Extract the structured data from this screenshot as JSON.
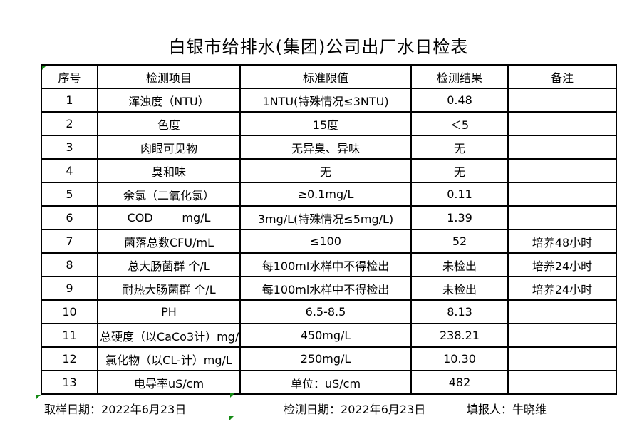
{
  "title": "白银市给排水(集团)公司出厂水日检表",
  "table": {
    "headers": [
      "序号",
      "检测项目",
      "标准限值",
      "检测结果",
      "备注"
    ],
    "rows": [
      {
        "no": "1",
        "item": "浑浊度（NTU）",
        "limit": "1NTU(特殊情况≤3NTU)",
        "result": "0.48",
        "remark": ""
      },
      {
        "no": "2",
        "item": "色度",
        "limit": "15度",
        "result": "＜5",
        "remark": ""
      },
      {
        "no": "3",
        "item": "肉眼可见物",
        "limit": "无异臭、异味",
        "result": "无",
        "remark": ""
      },
      {
        "no": "4",
        "item": "臭和味",
        "limit": "无",
        "result": "无",
        "remark": ""
      },
      {
        "no": "5",
        "item": "余氯（二氧化氯）",
        "limit": "≥0.1mg/L",
        "result": "0.11",
        "remark": ""
      },
      {
        "no": "6",
        "item": "COD        mg/L",
        "limit": "3mg/L(特殊情况≤5mg/L)",
        "result": "1.39",
        "remark": ""
      },
      {
        "no": "7",
        "item": "菌落总数CFU/mL",
        "limit": "≤100",
        "result": "52",
        "remark": "培养48小时"
      },
      {
        "no": "8",
        "item": "总大肠菌群 个/L",
        "limit": "每100ml水样中不得检出",
        "result": "未检出",
        "remark": "培养24小时"
      },
      {
        "no": "9",
        "item": "耐热大肠菌群 个/L",
        "limit": "每100ml水样中不得检出",
        "result": "未检出",
        "remark": "培养24小时"
      },
      {
        "no": "10",
        "item": "PH",
        "limit": "6.5-8.5",
        "result": "8.13",
        "remark": ""
      },
      {
        "no": "11",
        "item": "总硬度（以CaCo3计）mg/L",
        "limit": "450mg/L",
        "result": "238.21",
        "remark": ""
      },
      {
        "no": "12",
        "item": "氯化物（以CL-计）mg/L",
        "limit": "250mg/L",
        "result": "10.30",
        "remark": ""
      },
      {
        "no": "13",
        "item": "电导率uS/cm",
        "limit": "单位：uS/cm",
        "result": "482",
        "remark": ""
      }
    ]
  },
  "footer": {
    "sample_date_label": "取样日期：",
    "sample_date": "2022年6月23日",
    "test_date_label": "检测日期：",
    "test_date": "2022年6月23日",
    "reporter_label": "填报人：",
    "reporter": "牛晓维"
  },
  "colors": {
    "background": "#ffffff",
    "border": "#000000",
    "text": "#000000",
    "marker_green": "#148a14"
  }
}
